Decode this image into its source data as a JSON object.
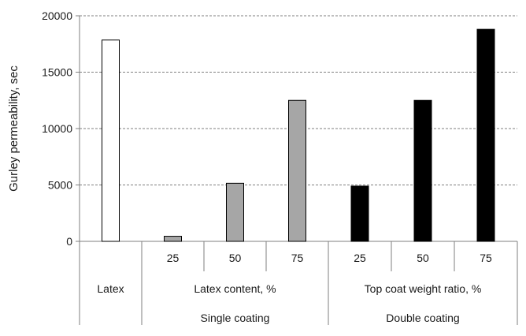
{
  "chart_data": {
    "type": "bar",
    "title": "",
    "xlabel": "",
    "ylabel": "Gurley permeability, sec",
    "ylim": [
      0,
      20000
    ],
    "yticks": [
      0,
      5000,
      10000,
      15000,
      20000
    ],
    "grid": "horizontal-dashed",
    "legend": "none",
    "categories": [
      "Latex",
      "25",
      "50",
      "75",
      "25",
      "50",
      "75"
    ],
    "values": [
      17850,
      450,
      5150,
      12500,
      4900,
      12500,
      18800
    ],
    "bar_fills": [
      "#ffffff",
      "#a6a6a6",
      "#a6a6a6",
      "#a6a6a6",
      "#000000",
      "#000000",
      "#000000"
    ],
    "bar_stroke": "#000000",
    "group_labels_level2": [
      "Latex",
      "Latex content, %",
      "Top coat weight ratio, %"
    ],
    "group_labels_level3": [
      "Single coating",
      "Double coating"
    ]
  }
}
